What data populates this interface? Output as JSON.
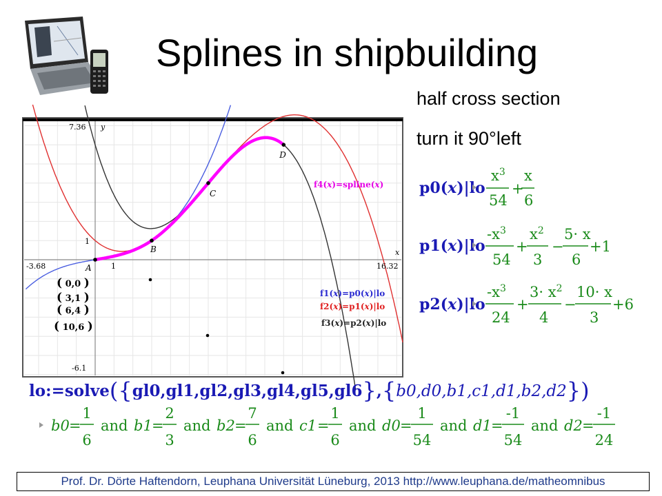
{
  "title": "Splines in shipbuilding",
  "notes": [
    "half  cross section",
    "turn it 90°left"
  ],
  "footer": "Prof. Dr. Dörte Haftendorn, Leuphana Universität Lüneburg, 2013 http://www.leuphana.de/matheomnibus",
  "graph": {
    "xmin": "-3.68",
    "xmax": "16.32",
    "ymax": "7.36",
    "ymin": "-6.1",
    "tick_x": "1",
    "tick_y": "1",
    "x_axis_label": "x",
    "y_axis_label": "y",
    "points": [
      {
        "label": "A",
        "x": 0,
        "y": 0
      },
      {
        "label": "B",
        "x": 3,
        "y": 1
      },
      {
        "label": "C",
        "x": 6,
        "y": 4
      },
      {
        "label": "D",
        "x": 10,
        "y": 6
      }
    ],
    "point_tuples": [
      "0,0",
      "3,1",
      "6,4",
      "10,6"
    ],
    "legend": [
      {
        "fn": "f4",
        "arg": "x",
        "expr": "=spline",
        "color": "#e600e6"
      },
      {
        "fn": "f1",
        "arg": "x",
        "expr": "=p0",
        "suffix": "lo",
        "color": "#2a2ad0"
      },
      {
        "fn": "f2",
        "arg": "x",
        "expr": "=p1",
        "suffix": "lo",
        "color": "#e02020"
      },
      {
        "fn": "f3",
        "arg": "x",
        "expr": "=p2",
        "suffix": "lo",
        "color": "#222222"
      }
    ],
    "colors": {
      "p0": "#4a5ee0",
      "p1": "#e03030",
      "p2": "#333333",
      "spline": "#ff00ff"
    }
  },
  "formulas": [
    {
      "name": "p0",
      "arg": "x",
      "suffix": "lo",
      "result": "x³/54 + x/6"
    },
    {
      "name": "p1",
      "arg": "x",
      "suffix": "lo",
      "result": "-x³/54 + x²/3 - 5·x/6 + 1"
    },
    {
      "name": "p2",
      "arg": "x",
      "suffix": "lo",
      "result": "-x³/24 + 3·x²/4 - 10·x/3 + 6"
    }
  ],
  "solve_command": {
    "lhs": "lo:=solve",
    "equations": "gl0,gl1,gl2,gl3,gl4,gl5,gl6",
    "unknowns": "b0,d0,b1,c1,d1,b2,d2"
  },
  "solution": [
    {
      "var": "b0",
      "num": "1",
      "den": "6"
    },
    {
      "var": "b1",
      "num": "2",
      "den": "3"
    },
    {
      "var": "b2",
      "num": "7",
      "den": "6"
    },
    {
      "var": "c1",
      "num": "1",
      "den": "6"
    },
    {
      "var": "d0",
      "num": "1",
      "den": "54"
    },
    {
      "var": "d1",
      "num": "-1",
      "den": "54"
    },
    {
      "var": "d2",
      "num": "-1",
      "den": "24"
    }
  ],
  "and_word": "and"
}
